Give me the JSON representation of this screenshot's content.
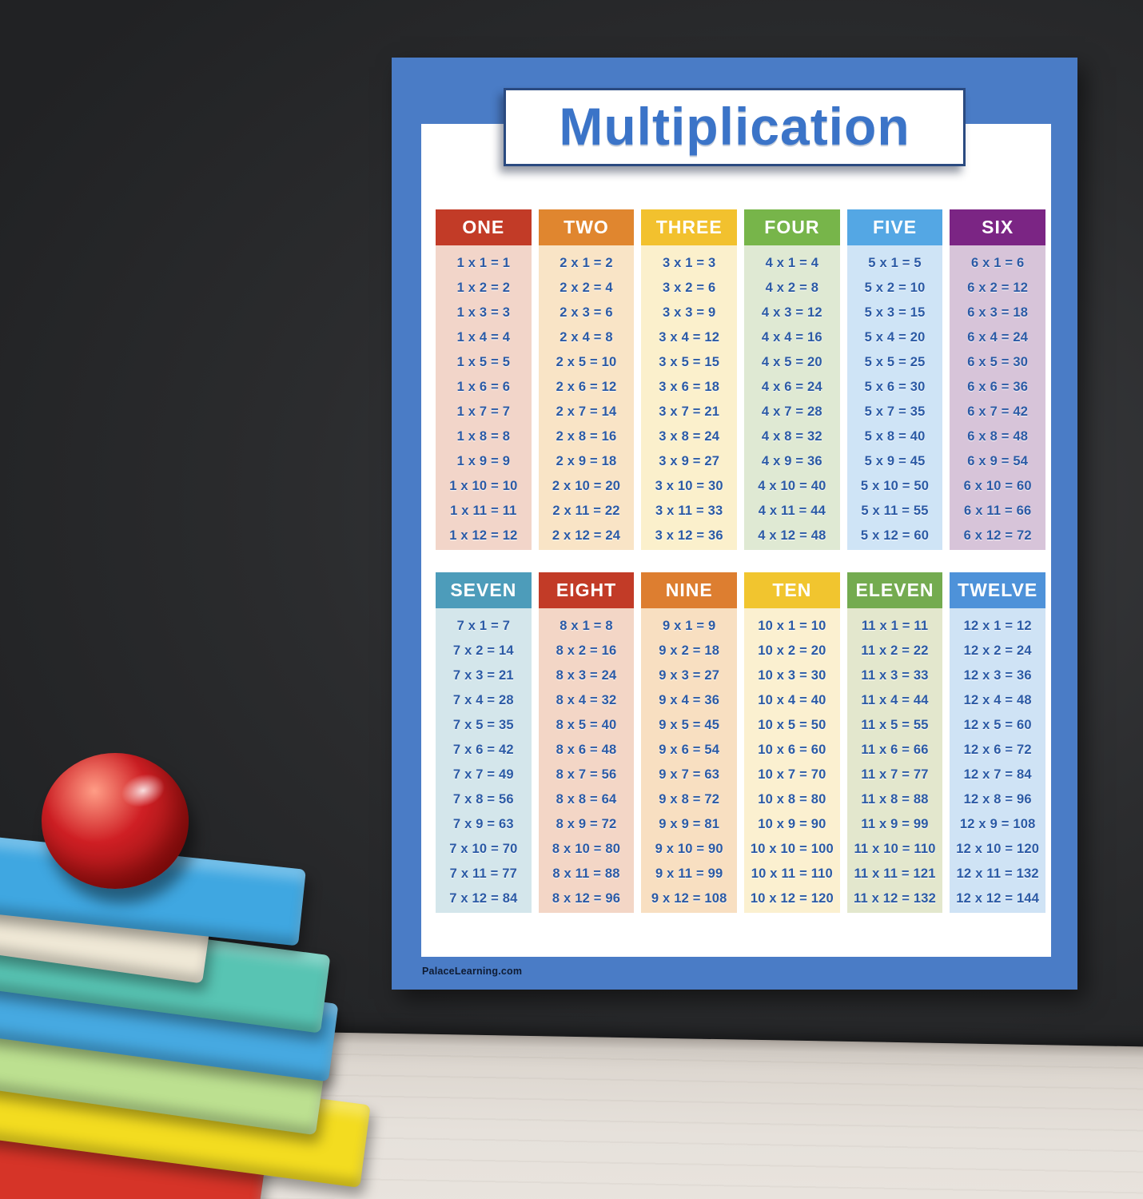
{
  "poster": {
    "title": "Multiplication",
    "footer": "PalaceLearning.com",
    "border_color": "#4a7cc6",
    "title_color": "#3b74c8",
    "equation_color": "#2b5aa5",
    "tables": [
      {
        "label": "ONE",
        "header_color": "#c23b27",
        "body_color": "#f2d5c9",
        "equations": [
          "1 x 1 = 1",
          "1 x 2 = 2",
          "1 x 3 = 3",
          "1 x 4 = 4",
          "1 x 5 = 5",
          "1 x 6 = 6",
          "1 x 7 = 7",
          "1 x 8 = 8",
          "1 x 9 = 9",
          "1 x 10 = 10",
          "1 x 11 = 11",
          "1 x 12 = 12"
        ]
      },
      {
        "label": "TWO",
        "header_color": "#e0862f",
        "body_color": "#f9e4c6",
        "equations": [
          "2 x 1 = 2",
          "2 x 2 = 4",
          "2 x 3 = 6",
          "2 x 4 = 8",
          "2 x 5 = 10",
          "2 x 6 = 12",
          "2 x 7 = 14",
          "2 x 8 = 16",
          "2 x 9 = 18",
          "2 x 10 = 20",
          "2 x 11 = 22",
          "2 x 12 = 24"
        ]
      },
      {
        "label": "THREE",
        "header_color": "#f2c12e",
        "body_color": "#fbf0cc",
        "equations": [
          "3 x 1 = 3",
          "3 x 2 = 6",
          "3 x 3 = 9",
          "3 x 4 = 12",
          "3 x 5 = 15",
          "3 x 6 = 18",
          "3 x 7 = 21",
          "3 x 8 = 24",
          "3 x 9 = 27",
          "3 x 10 = 30",
          "3 x 11 = 33",
          "3 x 12 = 36"
        ]
      },
      {
        "label": "FOUR",
        "header_color": "#77b54a",
        "body_color": "#dfe9d3",
        "equations": [
          "4 x 1 = 4",
          "4 x 2 = 8",
          "4 x 3 = 12",
          "4 x 4 = 16",
          "4 x 5 = 20",
          "4 x 6 = 24",
          "4 x 7 = 28",
          "4 x 8 = 32",
          "4 x 9 = 36",
          "4 x 10 = 40",
          "4 x 11 = 44",
          "4 x 12 = 48"
        ]
      },
      {
        "label": "FIVE",
        "header_color": "#54a7e4",
        "body_color": "#cfe4f6",
        "equations": [
          "5 x 1 = 5",
          "5 x 2 = 10",
          "5 x 3 = 15",
          "5 x 4 = 20",
          "5 x 5 = 25",
          "5 x 6 = 30",
          "5 x 7 = 35",
          "5 x 8 = 40",
          "5 x 9 = 45",
          "5 x 10 = 50",
          "5 x 11 = 55",
          "5 x 12 = 60"
        ]
      },
      {
        "label": "SIX",
        "header_color": "#7b2584",
        "body_color": "#d7c4d9",
        "equations": [
          "6 x 1 = 6",
          "6 x 2 = 12",
          "6 x 3 = 18",
          "6 x 4 = 24",
          "6 x 5 = 30",
          "6 x 6 = 36",
          "6 x 7 = 42",
          "6 x 8 = 48",
          "6 x 9 = 54",
          "6 x 10 = 60",
          "6 x 11 = 66",
          "6 x 12 = 72"
        ]
      },
      {
        "label": "SEVEN",
        "header_color": "#4d9cba",
        "body_color": "#d4e6eb",
        "equations": [
          "7 x 1 = 7",
          "7 x 2 = 14",
          "7 x 3 = 21",
          "7 x 4 = 28",
          "7 x 5 = 35",
          "7 x 6 = 42",
          "7 x 7 = 49",
          "7 x 8 = 56",
          "7 x 9 = 63",
          "7 x 10 = 70",
          "7 x 11 = 77",
          "7 x 12 = 84"
        ]
      },
      {
        "label": "EIGHT",
        "header_color": "#c23b27",
        "body_color": "#f3d6c6",
        "equations": [
          "8 x 1 = 8",
          "8 x 2 = 16",
          "8 x 3 = 24",
          "8 x 4 = 32",
          "8 x 5 = 40",
          "8 x 6 = 48",
          "8 x 7 = 56",
          "8 x 8 = 64",
          "8 x 9 = 72",
          "8 x 10 = 80",
          "8 x 11 = 88",
          "8 x 12 = 96"
        ]
      },
      {
        "label": "NINE",
        "header_color": "#dd7e30",
        "body_color": "#f8dfc1",
        "equations": [
          "9 x 1 = 9",
          "9 x 2 = 18",
          "9 x 3 = 27",
          "9 x 4 = 36",
          "9 x 5 = 45",
          "9 x 6 = 54",
          "9 x 7 = 63",
          "9 x 8 = 72",
          "9 x 9 = 81",
          "9 x 10 = 90",
          "9 x 11 = 99",
          "9 x 12 = 108"
        ]
      },
      {
        "label": "TEN",
        "header_color": "#f1c52f",
        "body_color": "#fbf0d0",
        "equations": [
          "10 x 1 = 10",
          "10 x 2 = 20",
          "10 x 3 = 30",
          "10 x 4 = 40",
          "10 x 5 = 50",
          "10 x 6 = 60",
          "10 x 7 = 70",
          "10 x 8 = 80",
          "10 x 9 = 90",
          "10 x 10 = 100",
          "10 x 11 = 110",
          "10 x 12 = 120"
        ]
      },
      {
        "label": "ELEVEN",
        "header_color": "#74ab50",
        "body_color": "#e3e7cd",
        "equations": [
          "11 x 1 = 11",
          "11 x 2 = 22",
          "11 x 3 = 33",
          "11 x 4 = 44",
          "11 x 5 = 55",
          "11 x 6 = 66",
          "11 x 7 = 77",
          "11 x 8 = 88",
          "11 x 9 = 99",
          "11 x 10 = 110",
          "11 x 11 = 121",
          "11 x 12 = 132"
        ]
      },
      {
        "label": "TWELVE",
        "header_color": "#4e92d9",
        "body_color": "#cfe3f5",
        "equations": [
          "12 x 1 = 12",
          "12 x 2 = 24",
          "12 x 3 = 36",
          "12 x 4 = 48",
          "12 x 5 = 60",
          "12 x 6 = 72",
          "12 x 7 = 84",
          "12 x 8 = 96",
          "12 x 9 = 108",
          "12 x 10 = 120",
          "12 x 11 = 132",
          "12 x 12 = 144"
        ]
      }
    ]
  },
  "scene": {
    "wall_color": "#2b2c2e",
    "table_color": "#ddd7d0",
    "apple_color": "#cf1f24",
    "books": [
      {
        "name": "blue-book-top",
        "color": "#3fa7e1"
      },
      {
        "name": "cream-book",
        "color": "#efe8d6"
      },
      {
        "name": "teal-book",
        "color": "#58c4b3"
      },
      {
        "name": "blue-book-middle",
        "color": "#46a9e1"
      },
      {
        "name": "green-book",
        "color": "#bce090"
      },
      {
        "name": "yellow-book",
        "color": "#f3dc20"
      },
      {
        "name": "red-book-bottom",
        "color": "#d63428"
      }
    ]
  }
}
